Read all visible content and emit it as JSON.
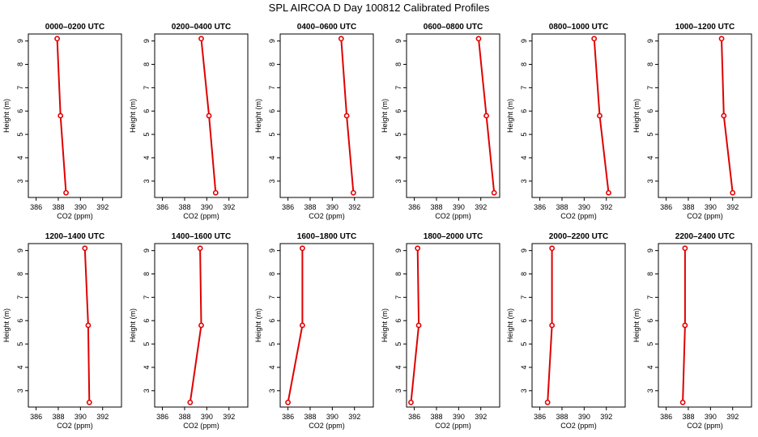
{
  "title": "SPL AIRCOA D  Day 100812  Calibrated Profiles",
  "chart_data": {
    "type": "line",
    "shared_axes": {
      "xlabel": "CO2 (ppm)",
      "ylabel": "Height (m)",
      "xlim": [
        385.3,
        393.7
      ],
      "ylim": [
        2.3,
        9.3
      ],
      "xticks": [
        386,
        388,
        390,
        392
      ],
      "yticks": [
        3,
        4,
        5,
        6,
        7,
        8,
        9
      ]
    },
    "panels": [
      {
        "title": "0000–0200 UTC",
        "x": [
          387.9,
          388.2,
          388.7
        ],
        "y": [
          9.1,
          5.8,
          2.5
        ]
      },
      {
        "title": "0200–0400 UTC",
        "x": [
          389.5,
          390.2,
          390.8
        ],
        "y": [
          9.1,
          5.8,
          2.5
        ]
      },
      {
        "title": "0400–0600 UTC",
        "x": [
          390.8,
          391.3,
          391.9
        ],
        "y": [
          9.1,
          5.8,
          2.5
        ]
      },
      {
        "title": "0600–0800 UTC",
        "x": [
          391.8,
          392.5,
          393.2
        ],
        "y": [
          9.1,
          5.8,
          2.5
        ]
      },
      {
        "title": "0800–1000 UTC",
        "x": [
          390.9,
          391.4,
          392.2
        ],
        "y": [
          9.1,
          5.8,
          2.5
        ]
      },
      {
        "title": "1000–1200 UTC",
        "x": [
          391.0,
          391.2,
          392.0
        ],
        "y": [
          9.1,
          5.8,
          2.5
        ]
      },
      {
        "title": "1200–1400 UTC",
        "x": [
          390.4,
          390.7,
          390.8
        ],
        "y": [
          9.1,
          5.8,
          2.5
        ]
      },
      {
        "title": "1400–1600 UTC",
        "x": [
          389.4,
          389.5,
          388.5
        ],
        "y": [
          9.1,
          5.8,
          2.5
        ]
      },
      {
        "title": "1600–1800 UTC",
        "x": [
          387.3,
          387.3,
          386.0
        ],
        "y": [
          9.1,
          5.8,
          2.5
        ]
      },
      {
        "title": "1800–2000 UTC",
        "x": [
          386.3,
          386.4,
          385.7
        ],
        "y": [
          9.1,
          5.8,
          2.5
        ]
      },
      {
        "title": "2000–2200 UTC",
        "x": [
          387.1,
          387.1,
          386.7
        ],
        "y": [
          9.1,
          5.8,
          2.5
        ]
      },
      {
        "title": "2200–2400 UTC",
        "x": [
          387.7,
          387.7,
          387.5
        ],
        "y": [
          9.1,
          5.8,
          2.5
        ]
      }
    ]
  }
}
